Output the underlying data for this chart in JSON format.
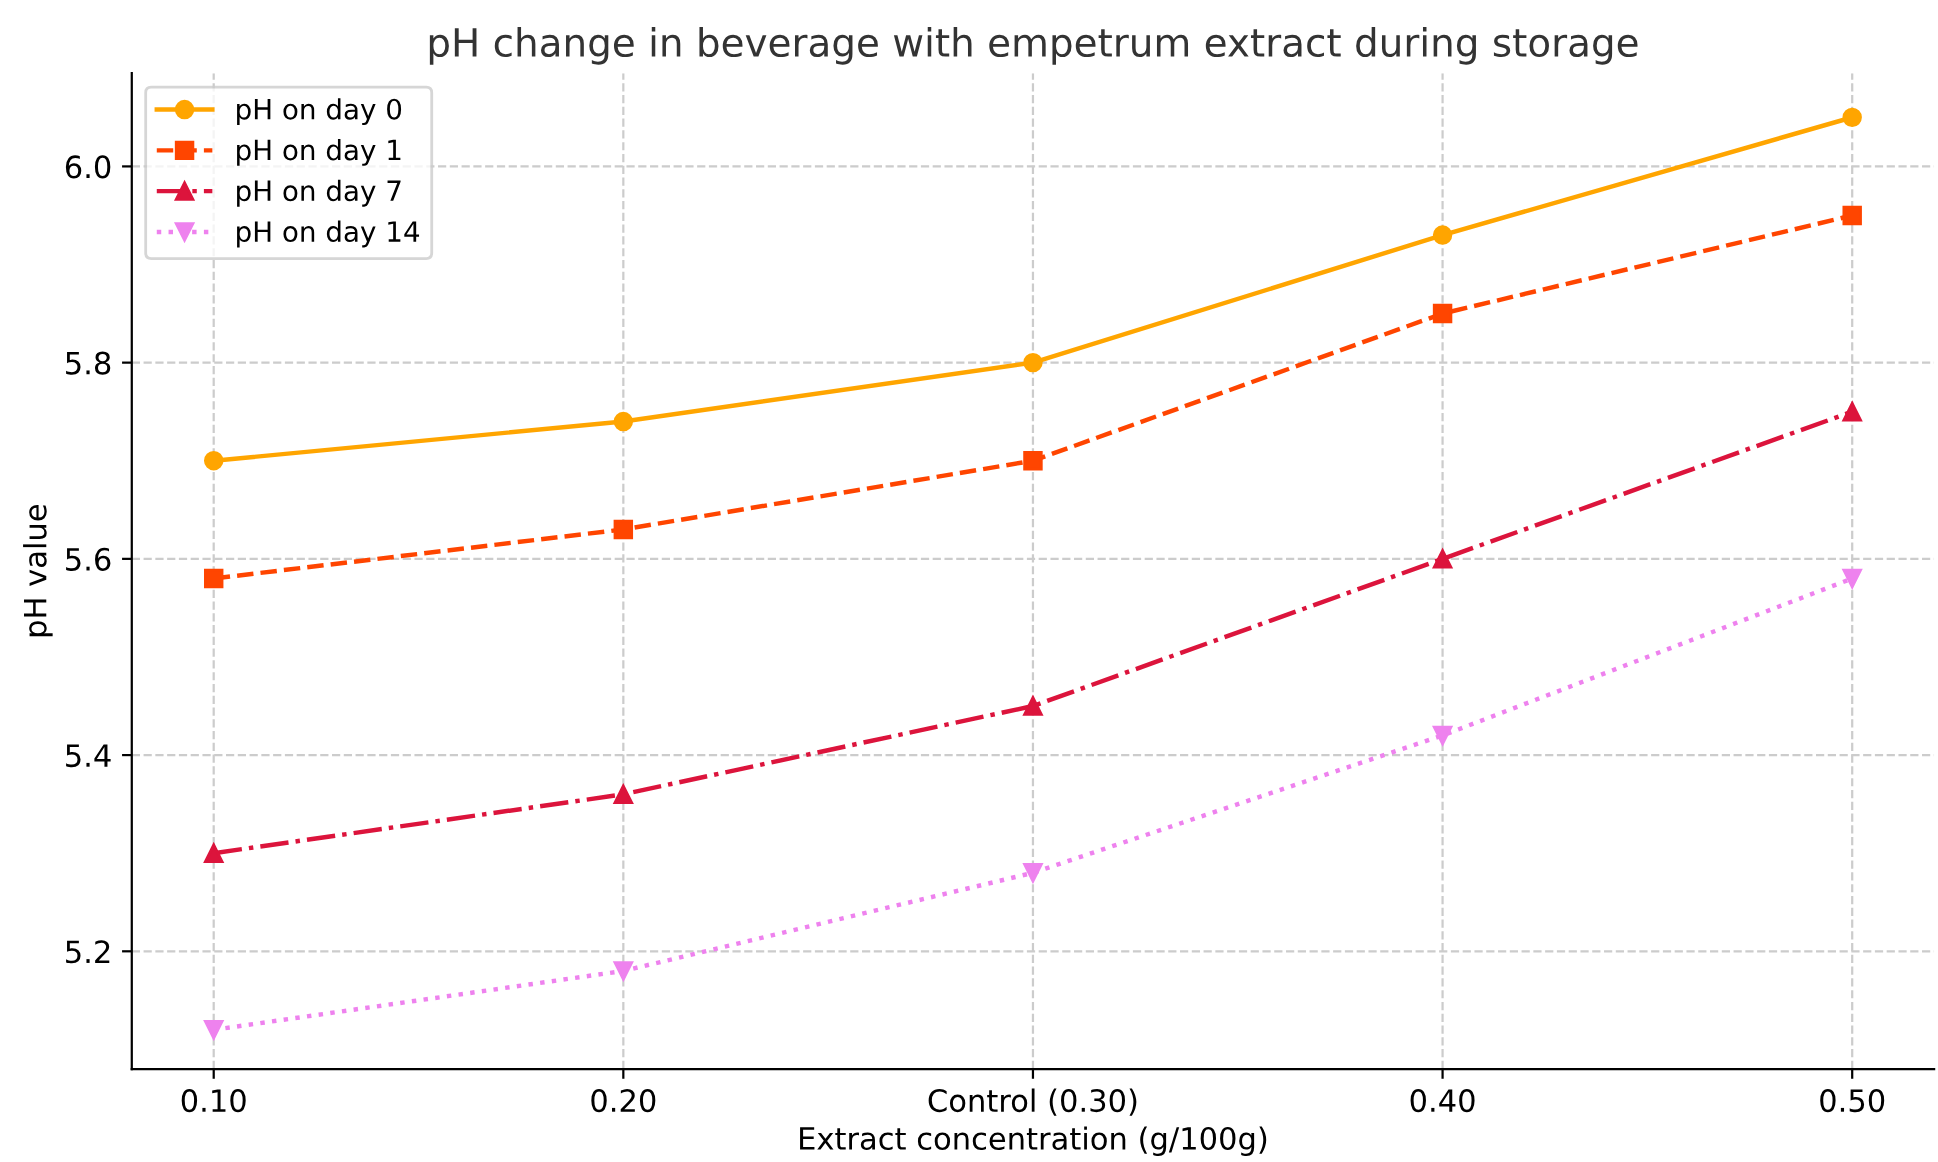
{
  "chart_data": {
    "type": "line",
    "title": "pH change in beverage with empetrum extract during storage",
    "xlabel": "Extract concentration (g/100g)",
    "ylabel": "pH value",
    "categories": [
      "0.10",
      "0.20",
      "Control (0.30)",
      "0.40",
      "0.50"
    ],
    "series": [
      {
        "name": "pH on day 0",
        "color": "#ffa500",
        "marker": "circle",
        "line_style": "solid",
        "values": [
          5.7,
          5.74,
          5.8,
          5.93,
          6.05
        ]
      },
      {
        "name": "pH on day 1",
        "color": "#ff4500",
        "marker": "square",
        "line_style": "dashed",
        "values": [
          5.58,
          5.63,
          5.7,
          5.85,
          5.95
        ]
      },
      {
        "name": "pH on day 7",
        "color": "#dc143c",
        "marker": "triangle",
        "line_style": "dashdot",
        "values": [
          5.3,
          5.36,
          5.45,
          5.6,
          5.75
        ]
      },
      {
        "name": "pH on day 14",
        "color": "#ee82ee",
        "marker": "triangle_down",
        "line_style": "dotted",
        "values": [
          5.12,
          5.18,
          5.28,
          5.42,
          5.58
        ]
      }
    ],
    "ylim": [
      5.08,
      6.095
    ],
    "yticks": [
      5.2,
      5.4,
      5.6,
      5.8,
      {
        "value": 6,
        "label": "6.0"
      }
    ],
    "grid": true,
    "legend": "top left"
  }
}
